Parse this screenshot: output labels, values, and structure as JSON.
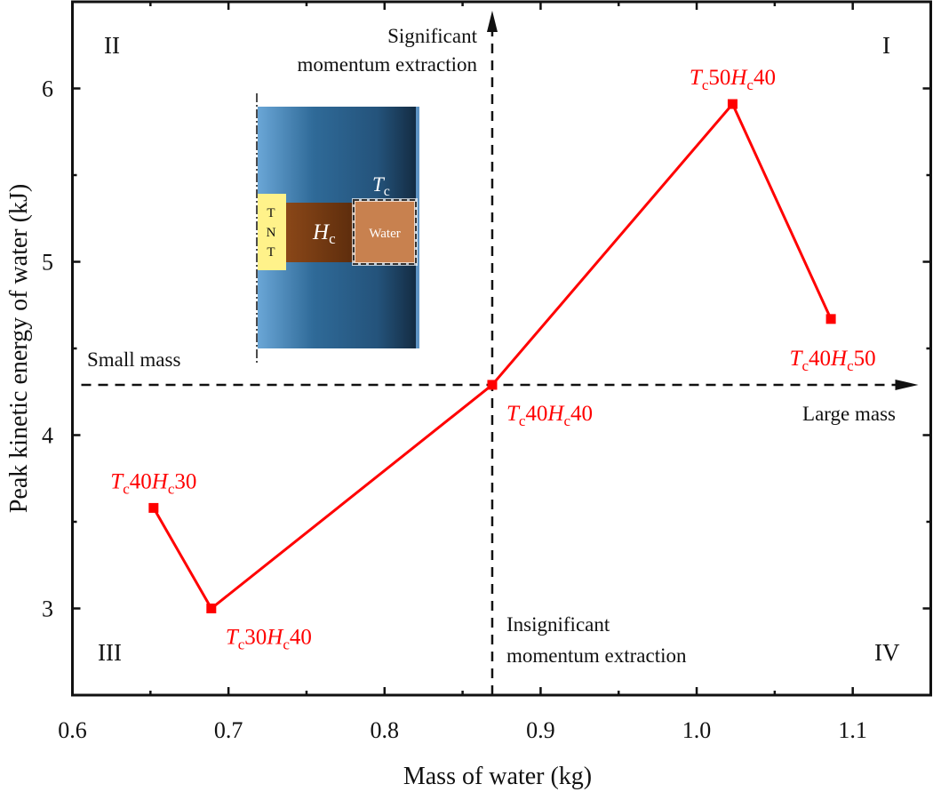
{
  "chart_data": {
    "type": "line",
    "title": "",
    "xlabel": "Mass of water (kg)",
    "ylabel": "Peak kinetic energy of water (kJ)",
    "xlim": [
      0.6,
      1.15
    ],
    "ylim": [
      2.5,
      6.5
    ],
    "x_ticks": [
      "0.6",
      "0.7",
      "0.8",
      "0.9",
      "1.0",
      "1.1"
    ],
    "y_ticks": [
      "3",
      "4",
      "5",
      "6"
    ],
    "x_tick_values": [
      0.6,
      0.7,
      0.8,
      0.9,
      1.0,
      1.1
    ],
    "y_tick_values": [
      3,
      4,
      5,
      6
    ],
    "grid": false,
    "series": [
      {
        "name": "cases",
        "color": "#ff0000",
        "marker": "square",
        "points": [
          {
            "x": 0.652,
            "y": 3.58,
            "label": {
              "T": "T",
              "sub1": "c",
              "n1": "40",
              "H": "H",
              "sub2": "c",
              "n2": "30"
            },
            "label_pos": "above"
          },
          {
            "x": 0.689,
            "y": 3.0,
            "label": {
              "T": "T",
              "sub1": "c",
              "n1": "30",
              "H": "H",
              "sub2": "c",
              "n2": "40"
            },
            "label_pos": "below-right"
          },
          {
            "x": 0.869,
            "y": 4.29,
            "label": {
              "T": "T",
              "sub1": "c",
              "n1": "40",
              "H": "H",
              "sub2": "c",
              "n2": "40"
            },
            "label_pos": "below-right"
          },
          {
            "x": 1.023,
            "y": 5.91,
            "label": {
              "T": "T",
              "sub1": "c",
              "n1": "50",
              "H": "H",
              "sub2": "c",
              "n2": "40"
            },
            "label_pos": "above"
          },
          {
            "x": 1.086,
            "y": 4.67,
            "label": {
              "T": "T",
              "sub1": "c",
              "n1": "40",
              "H": "H",
              "sub2": "c",
              "n2": "50"
            },
            "label_pos": "below"
          }
        ]
      }
    ],
    "reference_lines": {
      "vertical_x": 0.869,
      "horizontal_y": 4.29
    },
    "annotations": {
      "quadrant_I": "I",
      "quadrant_II": "II",
      "quadrant_III": "III",
      "quadrant_IV": "IV",
      "significant_line1": "Significant",
      "significant_line2": "momentum extraction",
      "insignificant_line1": "Insignificant",
      "insignificant_line2": "momentum extraction",
      "small_mass": "Small mass",
      "large_mass": "Large mass"
    },
    "inset": {
      "tnt_letters": [
        "T",
        "N",
        "T"
      ],
      "hc_label": "H",
      "hc_sub": "c",
      "tc_label": "T",
      "tc_sub": "c",
      "water_label": "Water"
    }
  }
}
